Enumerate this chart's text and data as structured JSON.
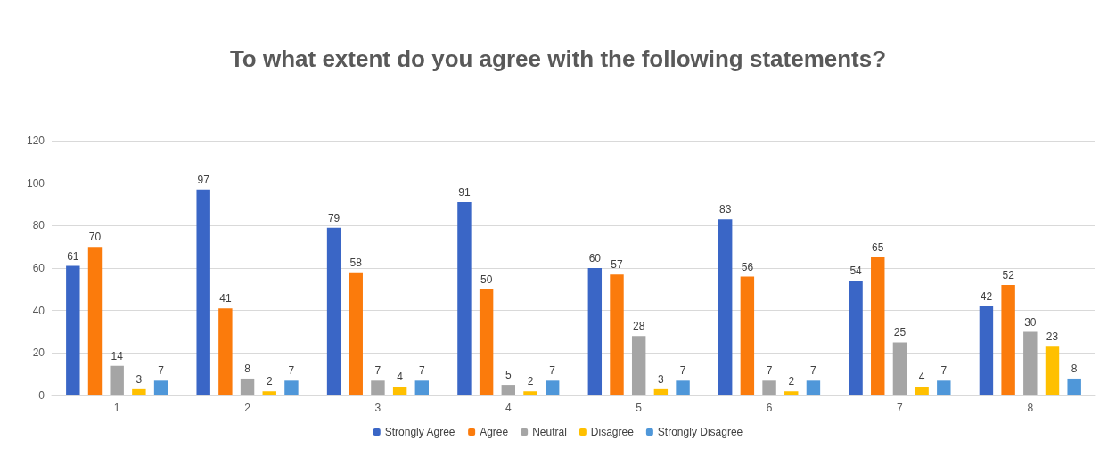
{
  "chart_data": {
    "type": "bar",
    "title": "To what extent do you agree with the following statements?",
    "categories": [
      "1",
      "2",
      "3",
      "4",
      "5",
      "6",
      "7",
      "8"
    ],
    "series": [
      {
        "name": "Strongly Agree",
        "color": "#3a66c6",
        "values": [
          61,
          97,
          79,
          91,
          60,
          83,
          54,
          42
        ]
      },
      {
        "name": "Agree",
        "color": "#fb7b0c",
        "values": [
          70,
          41,
          58,
          50,
          57,
          56,
          65,
          52
        ]
      },
      {
        "name": "Neutral",
        "color": "#a5a5a5",
        "values": [
          14,
          8,
          7,
          5,
          28,
          7,
          25,
          30
        ]
      },
      {
        "name": "Disagree",
        "color": "#ffc000",
        "values": [
          3,
          2,
          4,
          2,
          3,
          2,
          4,
          23
        ]
      },
      {
        "name": "Strongly Disagree",
        "color": "#4f97d9",
        "values": [
          7,
          7,
          7,
          7,
          7,
          7,
          7,
          8
        ]
      }
    ],
    "ylim": [
      0,
      120
    ],
    "yticks": [
      0,
      20,
      40,
      60,
      80,
      100,
      120
    ],
    "grid": "y",
    "legend": "bottom",
    "data_labels": true
  }
}
